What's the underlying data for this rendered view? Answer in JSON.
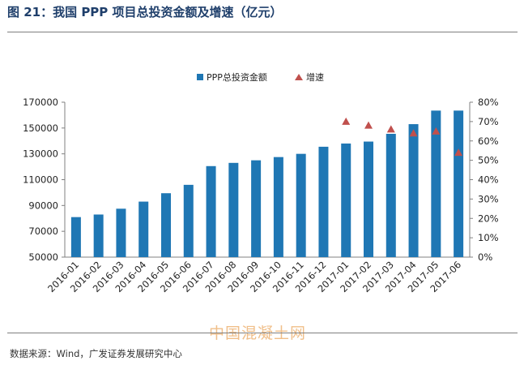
{
  "figure": {
    "title": "图 21：我国 PPP 项目总投资金额及增速（亿元）",
    "source": "数据来源：Wind，广发证券发展研究中心",
    "watermark": "中国混凝土网"
  },
  "colors": {
    "bar": "#1f77b4",
    "marker": "#c0504d",
    "axis": "#808080",
    "text": "#222222"
  },
  "chart_data": {
    "type": "bar",
    "title": "",
    "categories": [
      "2016-01",
      "2016-02",
      "2016-03",
      "2016-04",
      "2016-05",
      "2016-06",
      "2016-07",
      "2016-08",
      "2016-09",
      "2016-10",
      "2016-11",
      "2016-12",
      "2017-01",
      "2017-02",
      "2017-03",
      "2017-04",
      "2017-05",
      "2017-06"
    ],
    "series": [
      {
        "name": "PPP总投资金额",
        "kind": "bar",
        "axis": "left",
        "values": [
          81000,
          83000,
          87500,
          93000,
          99500,
          106000,
          120500,
          123000,
          125000,
          127500,
          130000,
          135500,
          138000,
          139500,
          145500,
          153000,
          163500,
          163500
        ]
      },
      {
        "name": "增速",
        "kind": "marker",
        "axis": "right",
        "values": [
          null,
          null,
          null,
          null,
          null,
          null,
          null,
          null,
          null,
          null,
          null,
          null,
          0.7,
          0.68,
          0.66,
          0.64,
          0.65,
          0.54
        ]
      }
    ],
    "y_left": {
      "min": 50000,
      "max": 170000,
      "ticks": [
        50000,
        70000,
        90000,
        110000,
        130000,
        150000,
        170000
      ],
      "tick_labels": [
        "50000",
        "70000",
        "90000",
        "110000",
        "130000",
        "150000",
        "170000"
      ]
    },
    "y_right": {
      "min": 0,
      "max": 0.8,
      "ticks": [
        0,
        0.1,
        0.2,
        0.3,
        0.4,
        0.5,
        0.6,
        0.7,
        0.8
      ],
      "tick_labels": [
        "0%",
        "10%",
        "20%",
        "30%",
        "40%",
        "50%",
        "60%",
        "70%",
        "80%"
      ]
    },
    "legend": {
      "placement": "top-center",
      "entries": [
        "PPP总投资金额",
        "增速"
      ]
    },
    "grid": false
  }
}
